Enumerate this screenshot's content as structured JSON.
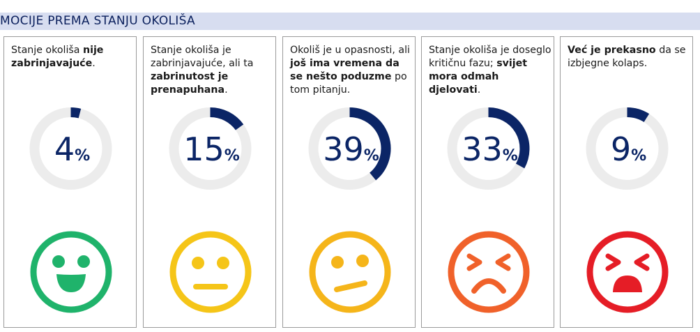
{
  "header": {
    "title": "MOCIJE PREMA STANJU OKOLIŠA"
  },
  "chart_data": {
    "type": "donut",
    "title": "MOCIJE PREMA STANJU OKOLIŠA",
    "unit": "%",
    "categories": [
      "Stanje okoliša nije zabrinjavajuće.",
      "Stanje okoliša je zabrinjavajuće, ali ta zabrinutost je prenapuhana.",
      "Okoliš je u opasnosti, ali još ima vremena da se nešto poduzme po tom pitanju.",
      "Stanje okoliša je doseglo kritičnu fazu; svijet mora odmah djelovati.",
      "Već je prekasno da se izbjegne kolaps."
    ],
    "values": [
      4,
      15,
      39,
      33,
      9
    ],
    "colors": {
      "ring_fill": "#0b2566",
      "ring_track": "#ececec"
    }
  },
  "panels": [
    {
      "desc": [
        {
          "t": "Stanje okoliša "
        },
        {
          "t": "nije zabrinjavajuće",
          "b": true
        },
        {
          "t": "."
        }
      ],
      "value": "4",
      "percent": "%",
      "face": {
        "type": "happy",
        "color": "#1fb36b"
      }
    },
    {
      "desc": [
        {
          "t": "Stanje okoliša je zabrinjavajuće, ali ta "
        },
        {
          "t": "zabrinutost je prenapuhana",
          "b": true
        },
        {
          "t": "."
        }
      ],
      "value": "15",
      "percent": "%",
      "face": {
        "type": "neutral",
        "color": "#f5c518"
      }
    },
    {
      "desc": [
        {
          "t": "Okoliš je u opasnosti, ali "
        },
        {
          "t": "još ima vremena da se nešto poduzme",
          "b": true
        },
        {
          "t": " po tom pitanju."
        }
      ],
      "value": "39",
      "percent": "%",
      "face": {
        "type": "skeptical",
        "color": "#f5b51a"
      }
    },
    {
      "desc": [
        {
          "t": "Stanje okoliša je doseglo kritičnu fazu; "
        },
        {
          "t": "svijet mora odmah djelovati",
          "b": true
        },
        {
          "t": "."
        }
      ],
      "value": "33",
      "percent": "%",
      "face": {
        "type": "distressed",
        "color": "#f0612a"
      }
    },
    {
      "desc": [
        {
          "t": "Već je prekasno",
          "b": true
        },
        {
          "t": " da se izbjegne kolaps."
        }
      ],
      "value": "9",
      "percent": "%",
      "face": {
        "type": "shouting",
        "color": "#e51d26"
      }
    }
  ]
}
